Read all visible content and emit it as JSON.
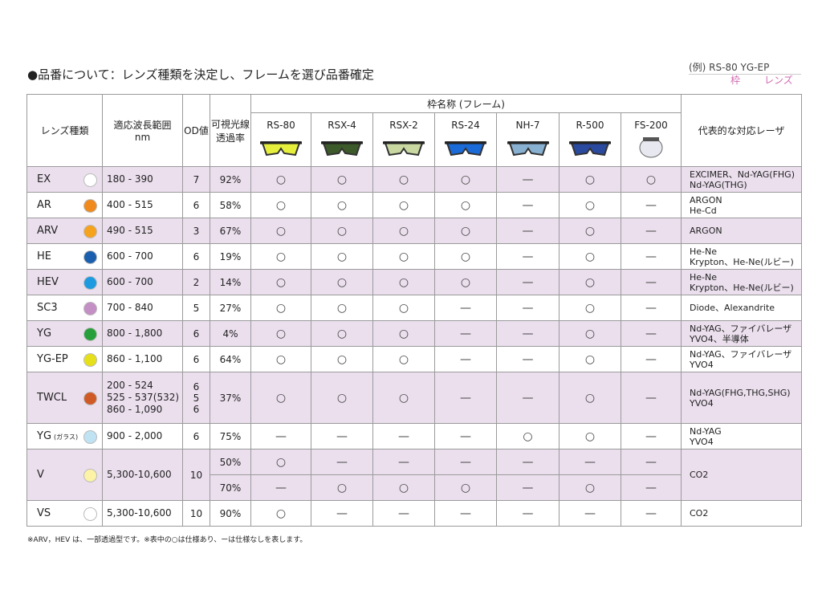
{
  "header": {
    "title": "●品番について：レンズ種類を決定し、フレームを選び品番確定",
    "example": "(例) RS-80  YG-EP",
    "example_frame": "枠",
    "example_lens": "レンズ"
  },
  "table": {
    "columns": {
      "lens": "レンズ種類",
      "wavelength": [
        "適応波長範囲",
        "nm"
      ],
      "od": "OD値",
      "transmission": [
        "可視光線",
        "透過率"
      ],
      "frame_group": "枠名称 (フレーム)",
      "laser": "代表的な対応レーザ"
    },
    "frames": [
      "RS-80",
      "RSX-4",
      "RSX-2",
      "RS-24",
      "NH-7",
      "R-500",
      "FS-200"
    ],
    "rows": [
      {
        "name": "EX",
        "color": "#ffffff",
        "wavelength": [
          "180 - 390"
        ],
        "od": [
          "7"
        ],
        "sub": [
          {
            "transmission": "92%",
            "frames": [
              "○",
              "○",
              "○",
              "○",
              "—",
              "○",
              "○"
            ]
          }
        ],
        "laser": [
          "EXCIMER、Nd-YAG(FHG)",
          "Nd-YAG(THG)"
        ]
      },
      {
        "name": "AR",
        "color": "#f08a1c",
        "wavelength": [
          "400 - 515"
        ],
        "od": [
          "6"
        ],
        "sub": [
          {
            "transmission": "58%",
            "frames": [
              "○",
              "○",
              "○",
              "○",
              "—",
              "○",
              "—"
            ]
          }
        ],
        "laser": [
          "ARGON",
          "He-Cd"
        ]
      },
      {
        "name": "ARV",
        "color": "#f5a21e",
        "wavelength": [
          "490 - 515"
        ],
        "od": [
          "3"
        ],
        "sub": [
          {
            "transmission": "67%",
            "frames": [
              "○",
              "○",
              "○",
              "○",
              "—",
              "○",
              "—"
            ]
          }
        ],
        "laser": [
          "ARGON"
        ]
      },
      {
        "name": "HE",
        "color": "#1a5fae",
        "wavelength": [
          "600 - 700"
        ],
        "od": [
          "6"
        ],
        "sub": [
          {
            "transmission": "19%",
            "frames": [
              "○",
              "○",
              "○",
              "○",
              "—",
              "○",
              "—"
            ]
          }
        ],
        "laser": [
          "He-Ne",
          "Krypton、He-Ne(ルビー)"
        ]
      },
      {
        "name": "HEV",
        "color": "#1e9be0",
        "wavelength": [
          "600 - 700"
        ],
        "od": [
          "2"
        ],
        "sub": [
          {
            "transmission": "14%",
            "frames": [
              "○",
              "○",
              "○",
              "○",
              "—",
              "○",
              "—"
            ]
          }
        ],
        "laser": [
          "He-Ne",
          "Krypton、He-Ne(ルビー)"
        ]
      },
      {
        "name": "SC3",
        "color": "#c48fc4",
        "wavelength": [
          "700 - 840"
        ],
        "od": [
          "5"
        ],
        "sub": [
          {
            "transmission": "27%",
            "frames": [
              "○",
              "○",
              "○",
              "—",
              "—",
              "○",
              "—"
            ]
          }
        ],
        "laser": [
          "Diode、Alexandrite"
        ]
      },
      {
        "name": "YG",
        "color": "#27a03c",
        "wavelength": [
          "800 - 1,800"
        ],
        "od": [
          "6"
        ],
        "sub": [
          {
            "transmission": "4%",
            "frames": [
              "○",
              "○",
              "○",
              "—",
              "—",
              "○",
              "—"
            ]
          }
        ],
        "laser": [
          "Nd-YAG、ファイバレーザ",
          "YVO4、半導体"
        ]
      },
      {
        "name": "YG-EP",
        "color": "#e6e01a",
        "wavelength": [
          "860 - 1,100"
        ],
        "od": [
          "6"
        ],
        "sub": [
          {
            "transmission": "64%",
            "frames": [
              "○",
              "○",
              "○",
              "—",
              "—",
              "○",
              "—"
            ]
          }
        ],
        "laser": [
          "Nd-YAG、ファイバレーザ",
          "YVO4"
        ]
      },
      {
        "name": "TWCL",
        "color": "#d05a26",
        "wavelength": [
          "200 - 524",
          "525 - 537(532)",
          "860 - 1,090"
        ],
        "od": [
          "6",
          "5",
          "6"
        ],
        "sub": [
          {
            "transmission": "37%",
            "frames": [
              "○",
              "○",
              "○",
              "—",
              "—",
              "○",
              "—"
            ]
          }
        ],
        "laser": [
          "Nd-YAG(FHG,THG,SHG)",
          "YVO4"
        ]
      },
      {
        "name": "YG",
        "note": "(ガラス)",
        "color": "#bfe3f3",
        "wavelength": [
          "900 - 2,000"
        ],
        "od": [
          "6"
        ],
        "sub": [
          {
            "transmission": "75%",
            "frames": [
              "—",
              "—",
              "—",
              "—",
              "○",
              "○",
              "—"
            ]
          }
        ],
        "laser": [
          "Nd-YAG",
          "YVO4"
        ]
      },
      {
        "name": "V",
        "color": "#fdf3a6",
        "wavelength": [
          "5,300-10,600"
        ],
        "od": [
          "10"
        ],
        "sub": [
          {
            "transmission": "50%",
            "frames": [
              "○",
              "—",
              "—",
              "—",
              "—",
              "—",
              "—"
            ]
          },
          {
            "transmission": "70%",
            "frames": [
              "—",
              "○",
              "○",
              "○",
              "—",
              "○",
              "—"
            ]
          }
        ],
        "laser": [
          "CO2"
        ]
      },
      {
        "name": "VS",
        "color": "#ffffff",
        "wavelength": [
          "5,300-10,600"
        ],
        "od": [
          "10"
        ],
        "sub": [
          {
            "transmission": "90%",
            "frames": [
              "○",
              "—",
              "—",
              "—",
              "—",
              "—",
              "—"
            ]
          }
        ],
        "laser": [
          "CO2"
        ]
      }
    ]
  },
  "footnote": "※ARV，HEV は、一部透過型です。※表中の○は仕様あり、ーは仕様なしを表します。"
}
